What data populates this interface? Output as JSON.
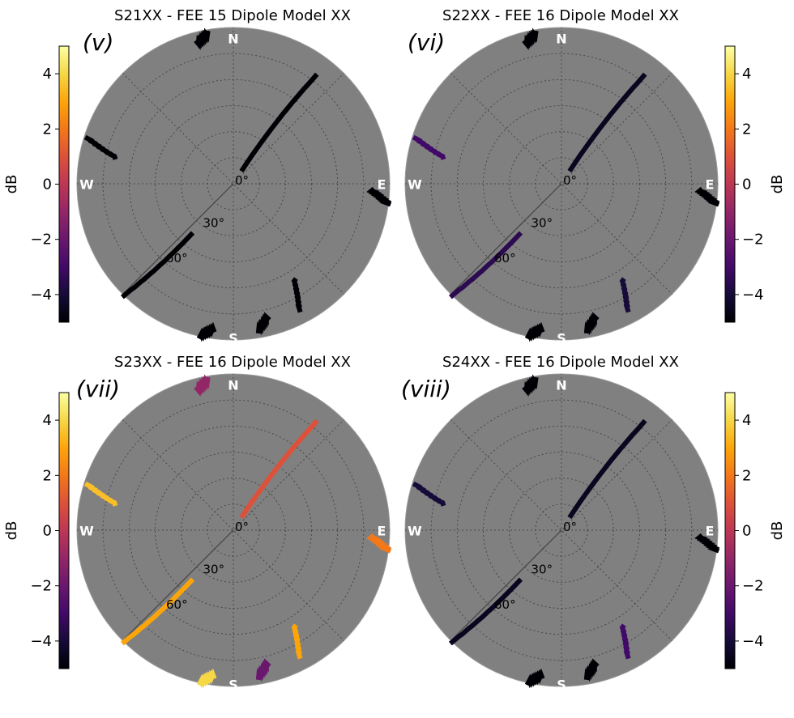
{
  "figure": {
    "colormap": "inferno",
    "background_disk": "#808080"
  },
  "panels": [
    {
      "title": "S21XX - FEE 15 Dipole Model XX",
      "label": "(v)",
      "colorbar_side": "left",
      "chart_data": {
        "type": "heatmap",
        "projection": "polar sky map (zenith at center)",
        "cardinal_labels": [
          "N",
          "E",
          "S",
          "W"
        ],
        "radial_ticks": [
          "0°",
          "30°",
          "60°"
        ],
        "colorbar": {
          "label": "dB",
          "ticks": [
            4,
            2,
            0,
            -2,
            -4
          ],
          "range": [
            -5,
            5
          ],
          "cmap": "inferno"
        },
        "strips": [
          {
            "az": 348,
            "za": [
              84,
              88
            ],
            "db": -5
          },
          {
            "az": 35,
            "za": [
              10,
              78
            ],
            "db": -5
          },
          {
            "az": 222,
            "za": [
              38,
              90
            ],
            "db": -5
          },
          {
            "az": 285,
            "za": [
              70,
              88
            ],
            "db": -5
          },
          {
            "az": 95,
            "za": [
              80,
              90
            ],
            "db": -5
          },
          {
            "az": 150,
            "za": [
              66,
              82
            ],
            "db": -5
          },
          {
            "az": 190,
            "za": [
              85,
              90
            ],
            "db": -5
          },
          {
            "az": 168,
            "za": [
              80,
              86
            ],
            "db": -5
          }
        ]
      }
    },
    {
      "title": "S22XX - FEE 16 Dipole Model XX",
      "label": "(vi)",
      "colorbar_side": "right",
      "chart_data": {
        "type": "heatmap",
        "projection": "polar sky map (zenith at center)",
        "cardinal_labels": [
          "N",
          "E",
          "S",
          "W"
        ],
        "radial_ticks": [
          "0°",
          "30°",
          "60°"
        ],
        "colorbar": {
          "label": "dB",
          "ticks": [
            4,
            2,
            0,
            -2,
            -4
          ],
          "range": [
            -5,
            5
          ],
          "cmap": "inferno"
        },
        "strips": [
          {
            "az": 348,
            "za": [
              84,
              88
            ],
            "db": -5
          },
          {
            "az": 35,
            "za": [
              10,
              78
            ],
            "db": -4.5
          },
          {
            "az": 222,
            "za": [
              38,
              90
            ],
            "db": -3.5
          },
          {
            "az": 285,
            "za": [
              70,
              88
            ],
            "db": -3
          },
          {
            "az": 95,
            "za": [
              80,
              90
            ],
            "db": -5
          },
          {
            "az": 150,
            "za": [
              66,
              82
            ],
            "db": -4
          },
          {
            "az": 190,
            "za": [
              85,
              90
            ],
            "db": -5
          },
          {
            "az": 168,
            "za": [
              80,
              86
            ],
            "db": -5
          }
        ]
      }
    },
    {
      "title": "S23XX - FEE 16 Dipole Model XX",
      "label": "(vii)",
      "colorbar_side": "left",
      "chart_data": {
        "type": "heatmap",
        "projection": "polar sky map (zenith at center)",
        "cardinal_labels": [
          "N",
          "E",
          "S",
          "W"
        ],
        "radial_ticks": [
          "0°",
          "30°",
          "60°"
        ],
        "colorbar": {
          "label": "dB",
          "ticks": [
            4,
            2,
            0,
            -2,
            -4
          ],
          "range": [
            -5,
            5
          ],
          "cmap": "inferno"
        },
        "strips": [
          {
            "az": 348,
            "za": [
              84,
              88
            ],
            "db": -1
          },
          {
            "az": 35,
            "za": [
              10,
              78
            ],
            "db": 1
          },
          {
            "az": 222,
            "za": [
              38,
              90
            ],
            "db": 3
          },
          {
            "az": 285,
            "za": [
              70,
              88
            ],
            "db": 3.5
          },
          {
            "az": 95,
            "za": [
              80,
              90
            ],
            "db": 2
          },
          {
            "az": 150,
            "za": [
              66,
              82
            ],
            "db": 3
          },
          {
            "az": 190,
            "za": [
              85,
              90
            ],
            "db": 4
          },
          {
            "az": 168,
            "za": [
              80,
              86
            ],
            "db": -2
          }
        ]
      }
    },
    {
      "title": "S24XX - FEE 16 Dipole Model XX",
      "label": "(viii)",
      "colorbar_side": "right",
      "chart_data": {
        "type": "heatmap",
        "projection": "polar sky map (zenith at center)",
        "cardinal_labels": [
          "N",
          "E",
          "S",
          "W"
        ],
        "radial_ticks": [
          "0°",
          "30°",
          "60°"
        ],
        "colorbar": {
          "label": "dB",
          "ticks": [
            4,
            2,
            0,
            -2,
            -4
          ],
          "range": [
            -5,
            5
          ],
          "cmap": "inferno"
        },
        "strips": [
          {
            "az": 348,
            "za": [
              84,
              88
            ],
            "db": -5
          },
          {
            "az": 35,
            "za": [
              10,
              78
            ],
            "db": -4.5
          },
          {
            "az": 222,
            "za": [
              38,
              90
            ],
            "db": -4.5
          },
          {
            "az": 285,
            "za": [
              70,
              88
            ],
            "db": -4
          },
          {
            "az": 95,
            "za": [
              80,
              90
            ],
            "db": -5
          },
          {
            "az": 150,
            "za": [
              66,
              82
            ],
            "db": -3
          },
          {
            "az": 190,
            "za": [
              85,
              90
            ],
            "db": -5
          },
          {
            "az": 168,
            "za": [
              80,
              86
            ],
            "db": -5
          }
        ]
      }
    }
  ]
}
